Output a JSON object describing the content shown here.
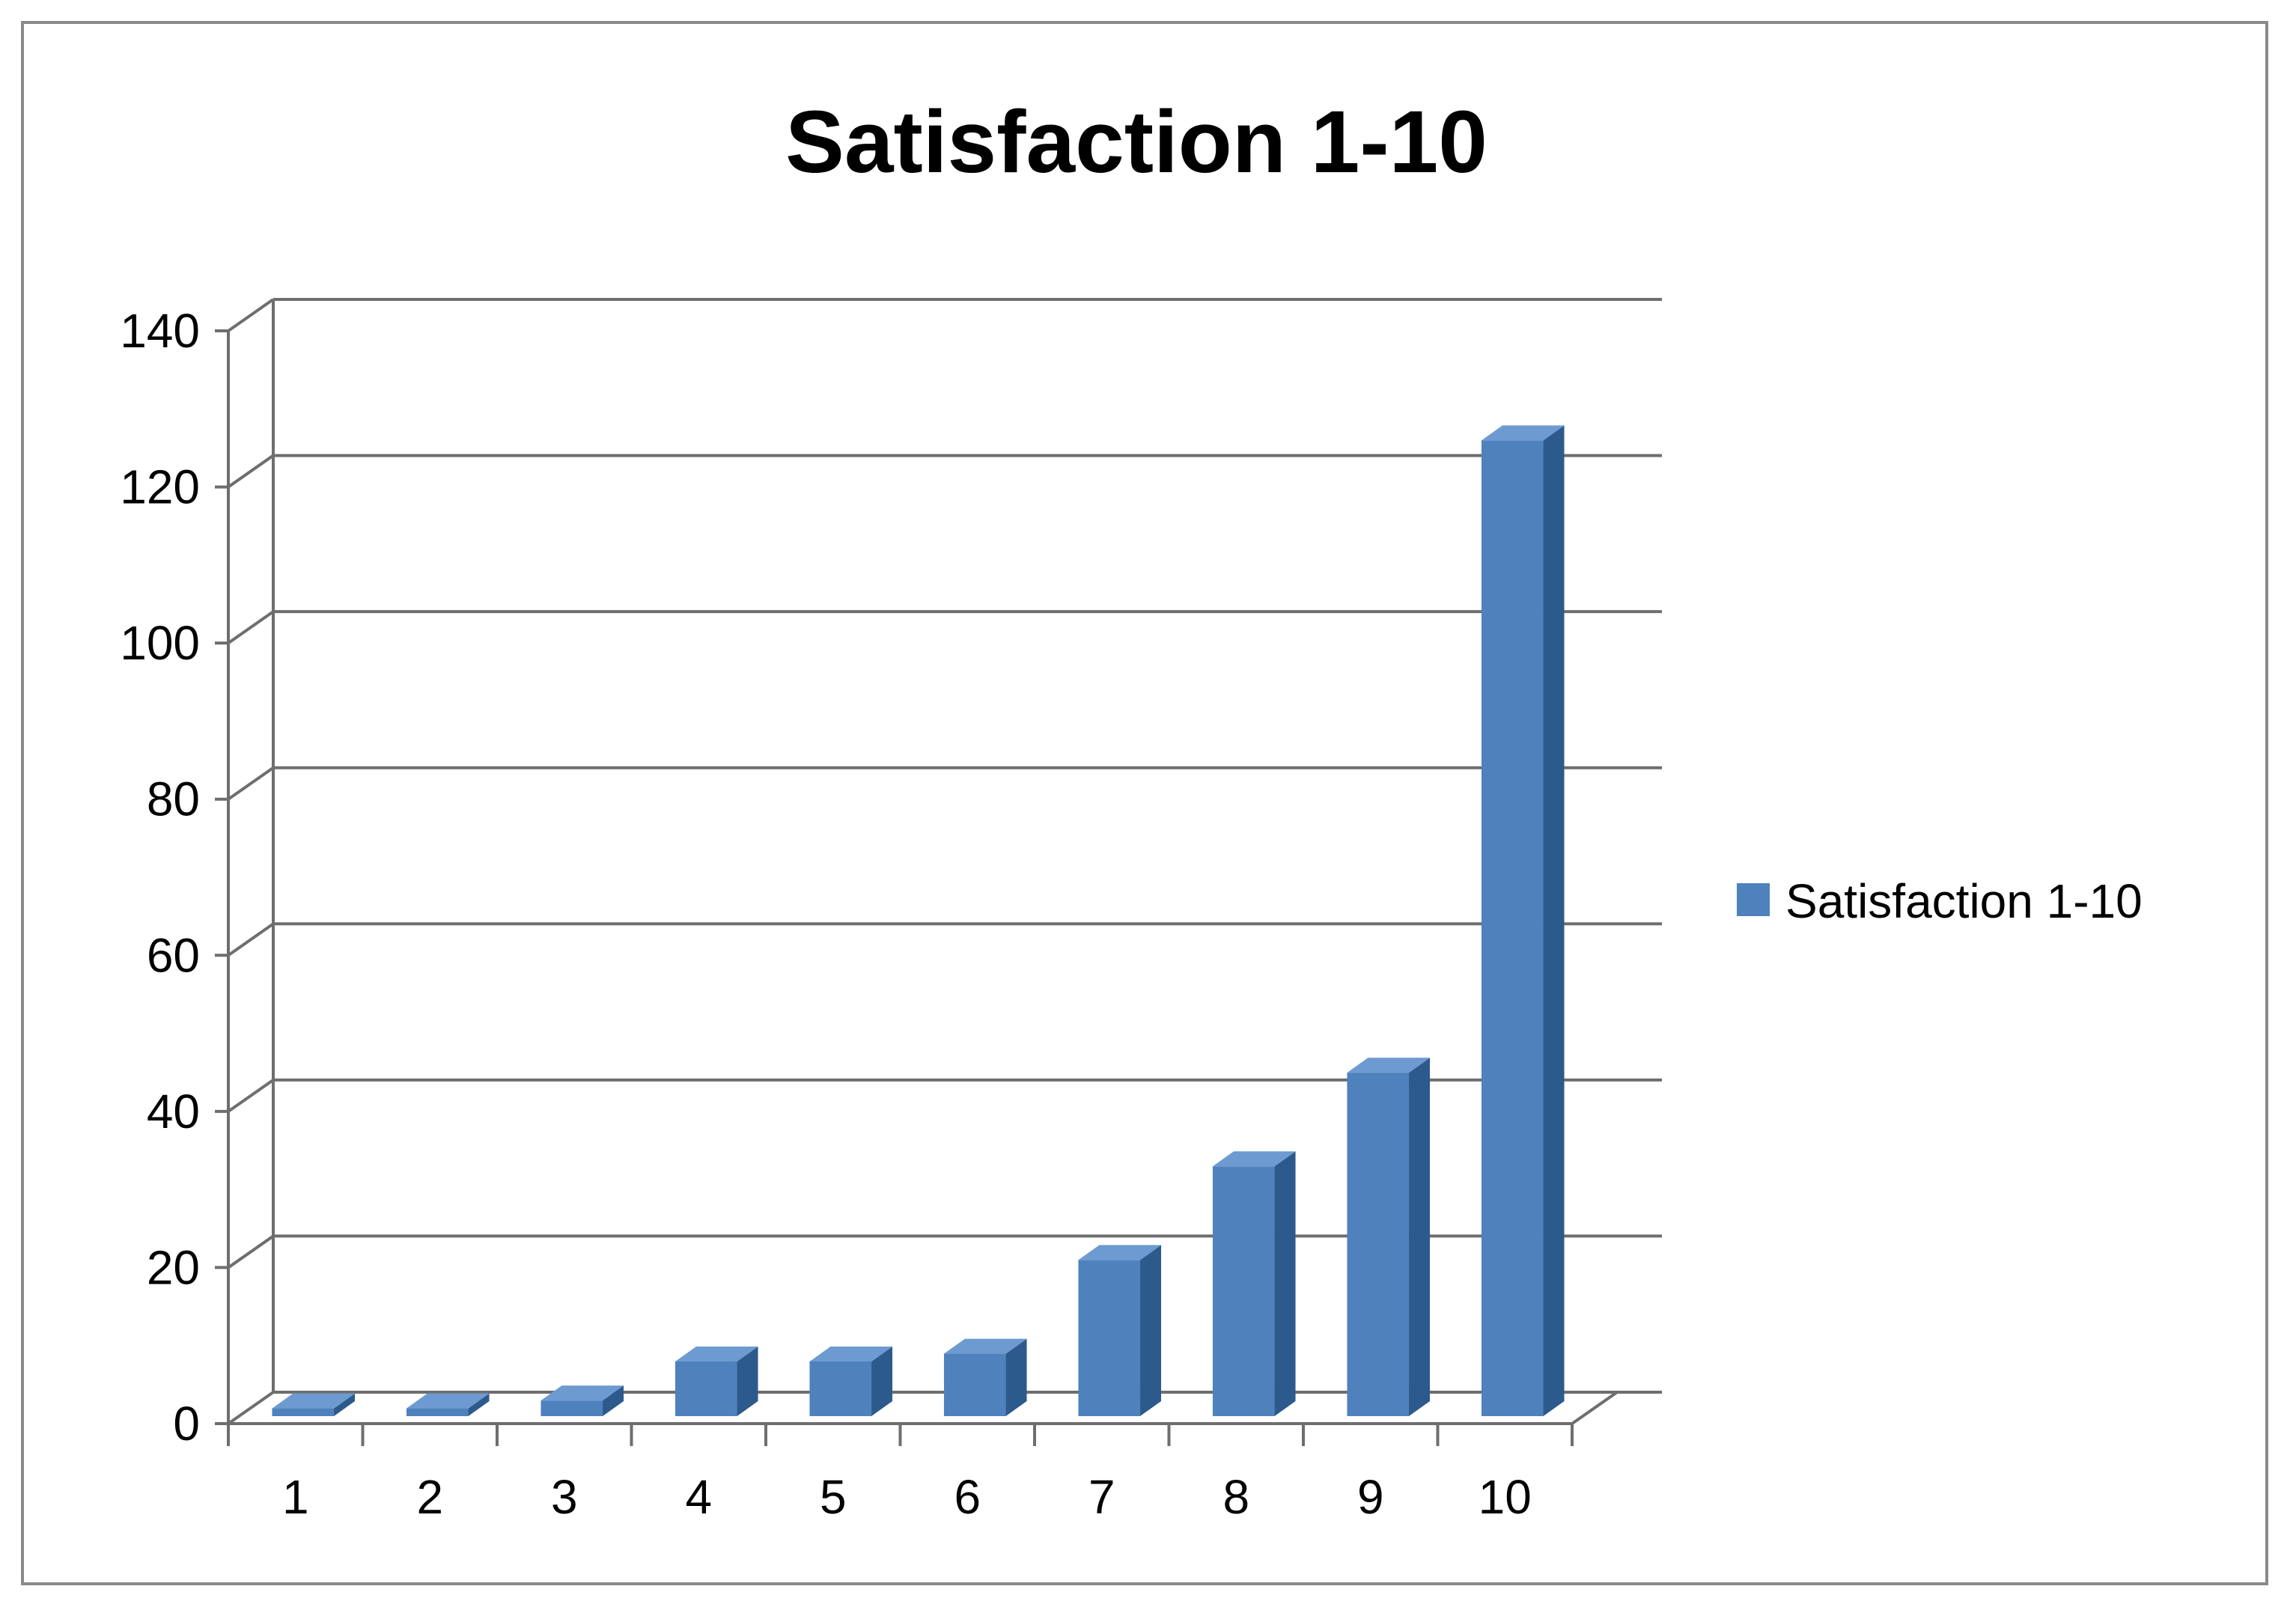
{
  "chart_data": {
    "type": "bar",
    "title": "Satisfaction 1-10",
    "categories": [
      "1",
      "2",
      "3",
      "4",
      "5",
      "6",
      "7",
      "8",
      "9",
      "10"
    ],
    "series": [
      {
        "name": "Satisfaction 1-10",
        "values": [
          1,
          1,
          2,
          7,
          7,
          8,
          20,
          32,
          44,
          125
        ]
      }
    ],
    "xlabel": "",
    "ylabel": "",
    "ylim": [
      0,
      140
    ],
    "yticks": [
      0,
      20,
      40,
      60,
      80,
      100,
      120,
      140
    ],
    "grid": true,
    "style": "3d-column",
    "legend": {
      "position": "right"
    },
    "colors": {
      "bar_front": "#4f81bd",
      "bar_side": "#2d5a8c",
      "bar_top": "#6d9bd1",
      "grid": "#6e6e6e"
    }
  }
}
